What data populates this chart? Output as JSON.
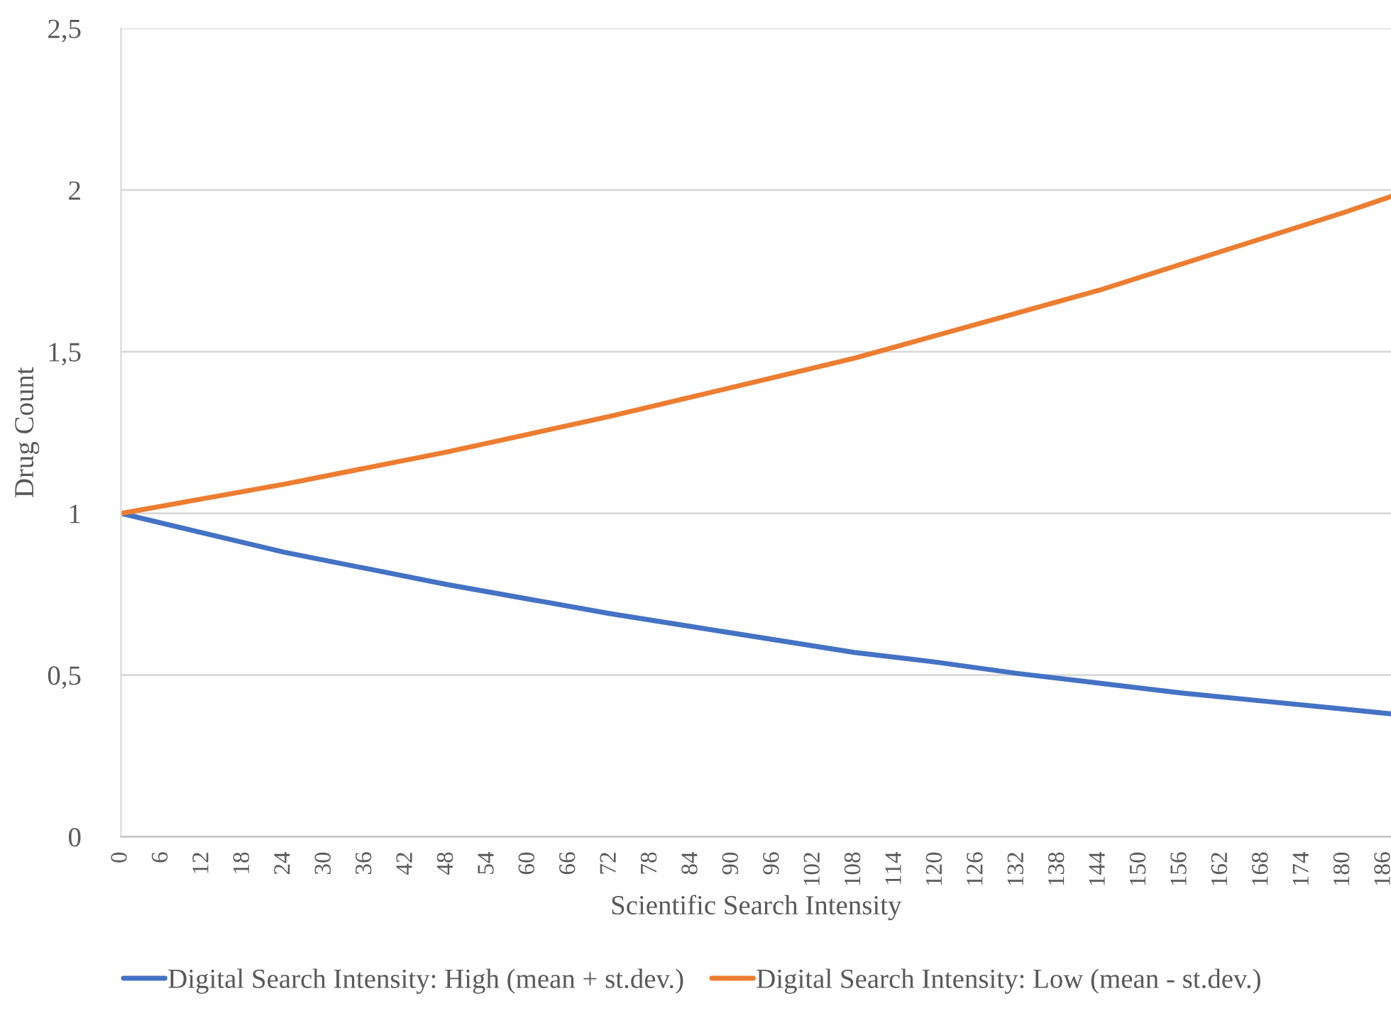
{
  "chart_data": {
    "type": "line",
    "xlabel": "Scientific Search Intensity",
    "ylabel": "Drug Count",
    "x": [
      0,
      12,
      24,
      36,
      48,
      60,
      72,
      84,
      96,
      108,
      120,
      132,
      144,
      156,
      168,
      180,
      187
    ],
    "series": [
      {
        "name": "Digital Search Intensity: High (mean + st.dev.)",
        "color": "#4472c4",
        "values": [
          1,
          0.94,
          0.88,
          0.83,
          0.78,
          0.735,
          0.69,
          0.65,
          0.61,
          0.57,
          0.54,
          0.505,
          0.475,
          0.445,
          0.42,
          0.395,
          0.38
        ]
      },
      {
        "name": "Digital Search Intensity: Low (mean - st.dev.)",
        "color": "#ed7d31",
        "values": [
          1,
          1.045,
          1.09,
          1.14,
          1.19,
          1.245,
          1.3,
          1.36,
          1.42,
          1.48,
          1.55,
          1.62,
          1.69,
          1.77,
          1.85,
          1.93,
          1.98
        ]
      }
    ],
    "xlim": [
      0,
      187
    ],
    "xticks": [
      0,
      6,
      12,
      18,
      24,
      30,
      36,
      42,
      48,
      54,
      60,
      66,
      72,
      78,
      84,
      90,
      96,
      102,
      108,
      114,
      120,
      126,
      132,
      138,
      144,
      150,
      156,
      162,
      168,
      174,
      180,
      186
    ],
    "ylim": [
      0,
      2.5
    ],
    "yticks": [
      0,
      {
        "value": 0.5,
        "label": "0,5"
      },
      1,
      {
        "value": 1.5,
        "label": "1,5"
      },
      2,
      {
        "value": 2.5,
        "label": "2,5"
      }
    ],
    "grid": "y",
    "legend": "bottom",
    "marker": "none",
    "line_style": "solid"
  }
}
